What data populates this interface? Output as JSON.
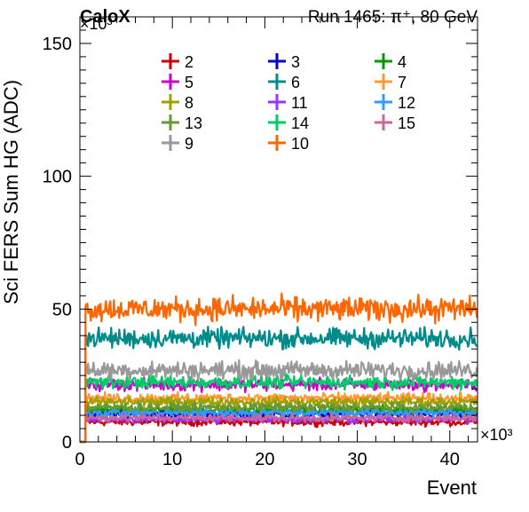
{
  "chart_data": {
    "type": "line",
    "brand": "CaloX",
    "run_label": "Run 1465:   π⁺, 80 GeV",
    "ylabel": "Sci FERS Sum HG (ADC)",
    "xlabel": "Event",
    "x_multiplier": "×10³",
    "y_multiplier": "×10³",
    "xlim": [
      0,
      43
    ],
    "ylim": [
      0,
      160
    ],
    "x_ticks": [
      0,
      10,
      20,
      30,
      40
    ],
    "y_ticks": [
      0,
      50,
      100,
      150
    ],
    "x_tick_labels": [
      "0",
      "10",
      "20",
      "30",
      "40"
    ],
    "y_tick_labels": [
      "0",
      "50",
      "100",
      "150"
    ],
    "grid": false,
    "legend_placement": "top",
    "series": [
      {
        "name": "2",
        "color": "#cc0000",
        "level": 7.5,
        "noise": 0.7
      },
      {
        "name": "3",
        "color": "#0000cc",
        "level": 10.5,
        "noise": 0.8
      },
      {
        "name": "4",
        "color": "#009900",
        "level": 12,
        "noise": 0.8
      },
      {
        "name": "5",
        "color": "#cc00cc",
        "level": 21.5,
        "noise": 1.1
      },
      {
        "name": "6",
        "color": "#008b8b",
        "level": 39,
        "noise": 1.8
      },
      {
        "name": "7",
        "color": "#ff9933",
        "level": 16.5,
        "noise": 0.9
      },
      {
        "name": "8",
        "color": "#a0a000",
        "level": 15,
        "noise": 0.9
      },
      {
        "name": "11",
        "color": "#9933ff",
        "level": 8.5,
        "noise": 0.7
      },
      {
        "name": "12",
        "color": "#3399ff",
        "level": 11,
        "noise": 0.8
      },
      {
        "name": "13",
        "color": "#669933",
        "level": 13,
        "noise": 0.8
      },
      {
        "name": "14",
        "color": "#00cc66",
        "level": 22.5,
        "noise": 1.2
      },
      {
        "name": "15",
        "color": "#cc6699",
        "level": 9,
        "noise": 0.7
      },
      {
        "name": "9",
        "color": "#999999",
        "level": 27,
        "noise": 1.6
      },
      {
        "name": "10",
        "color": "#ff6600",
        "level": 50,
        "noise": 2.2
      }
    ]
  }
}
